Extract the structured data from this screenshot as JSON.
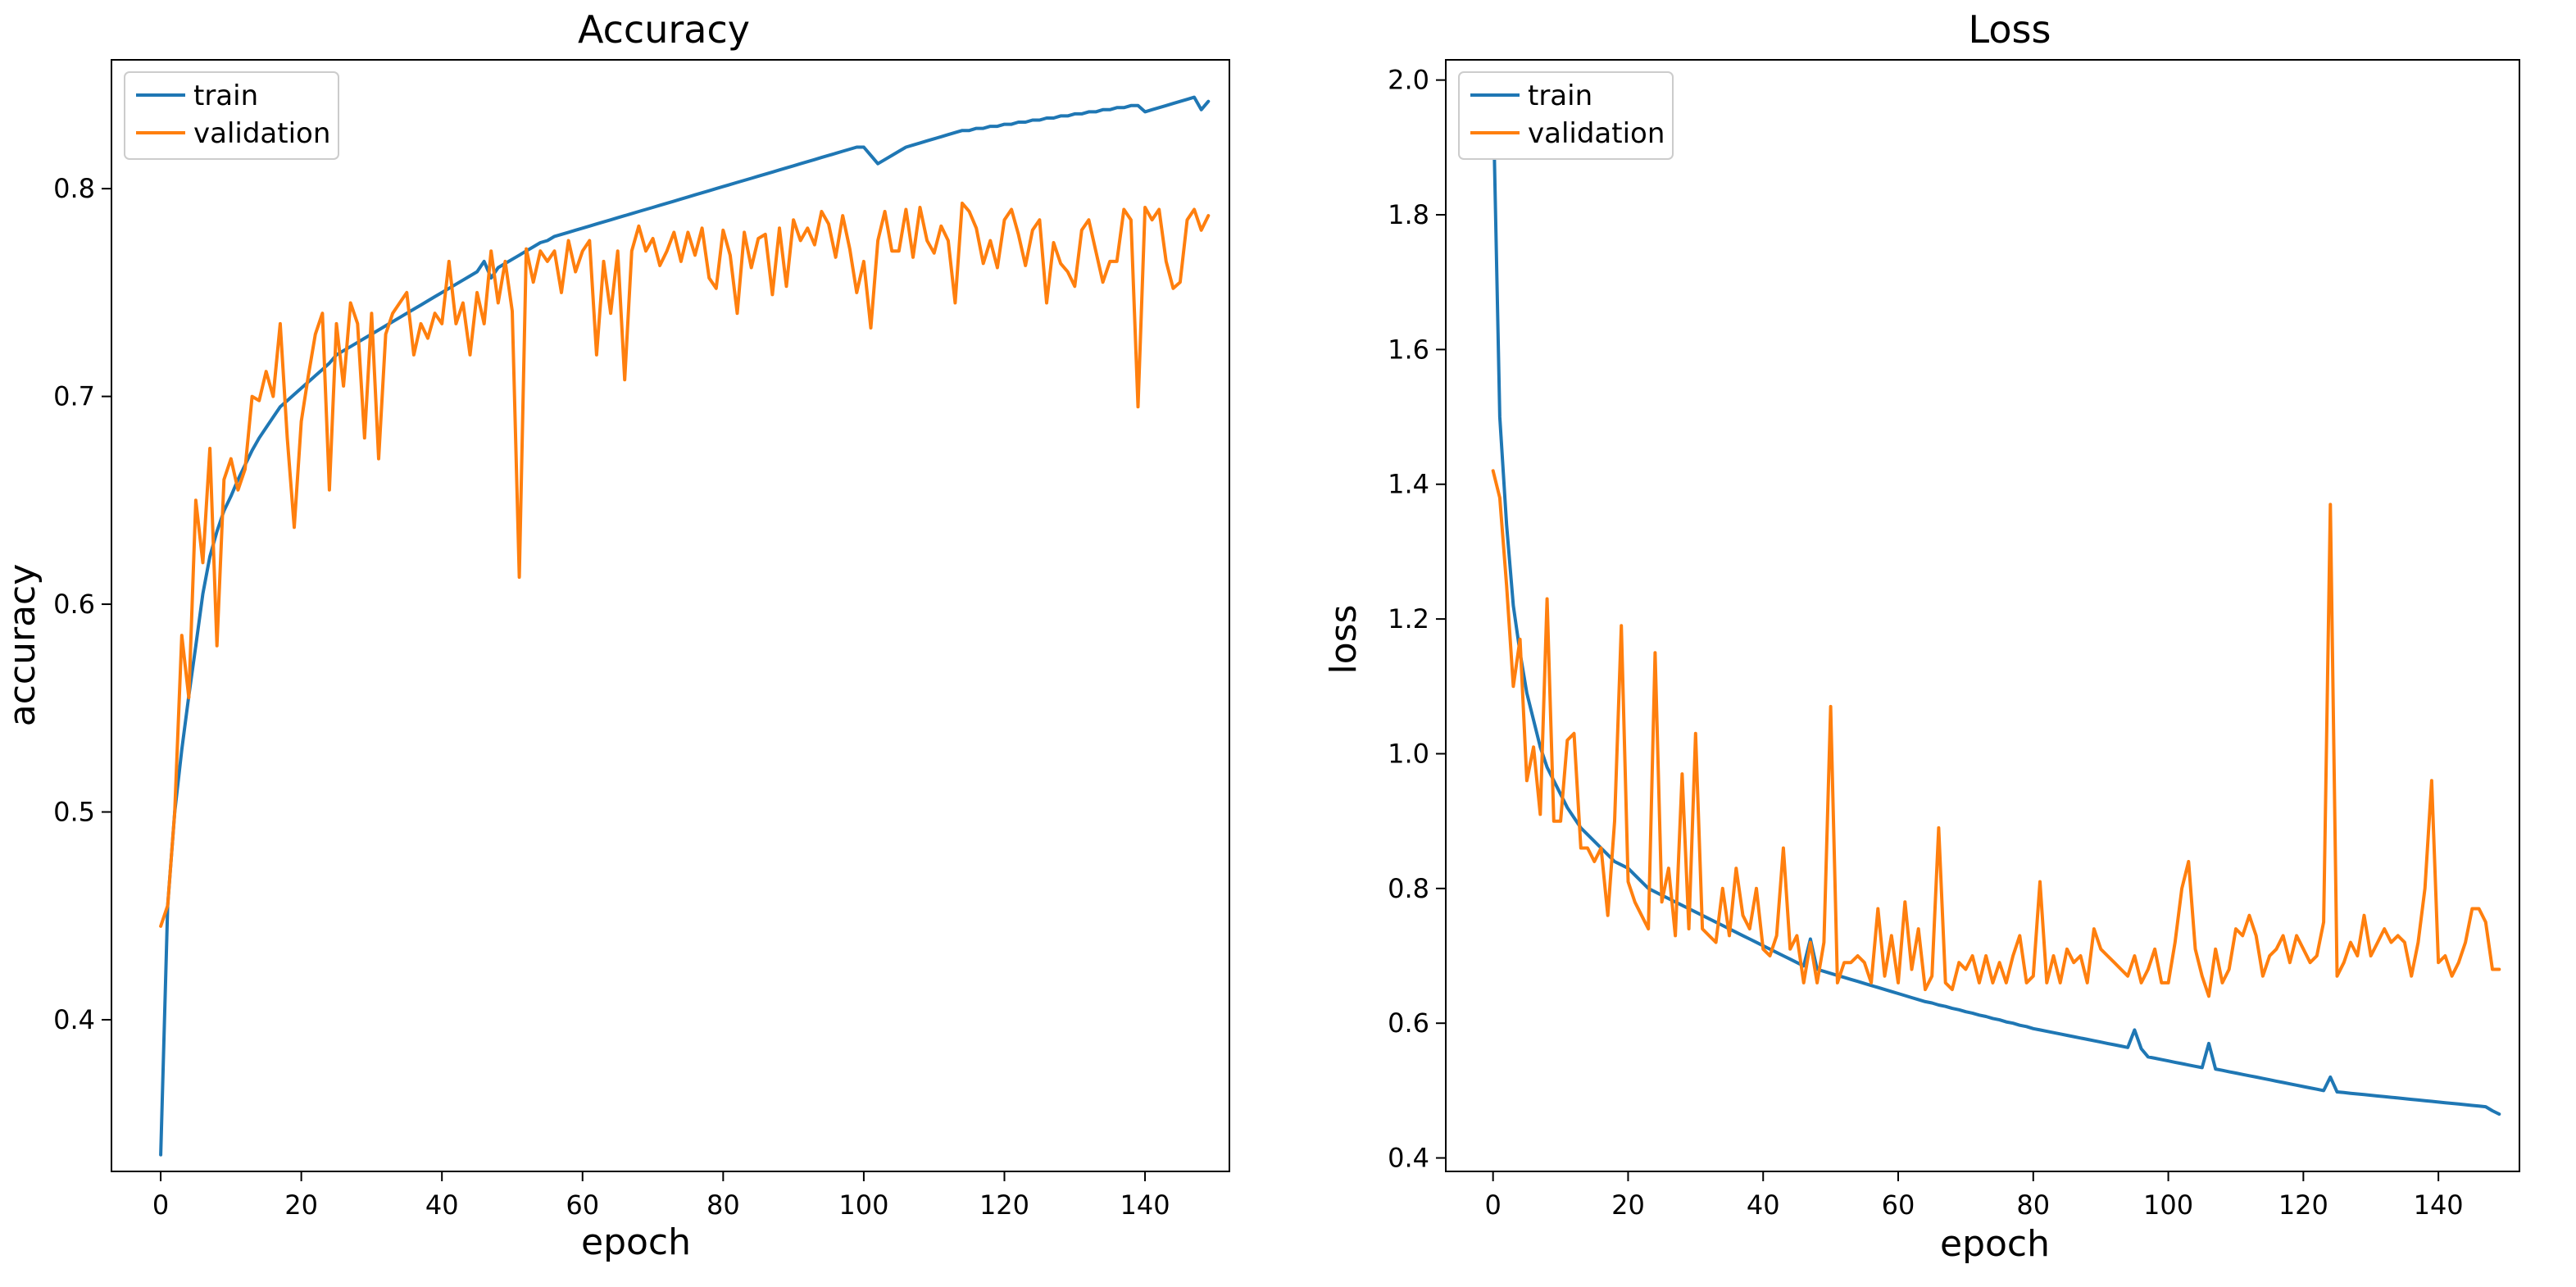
{
  "colors": {
    "train": "#1f77b4",
    "validation": "#ff7f0e",
    "axis": "#000000",
    "background": "#ffffff"
  },
  "chart_data": [
    {
      "type": "line",
      "title": "Accuracy",
      "xlabel": "epoch",
      "ylabel": "accuracy",
      "xlim": [
        -7,
        152
      ],
      "ylim": [
        0.327,
        0.862
      ],
      "xticks": [
        0,
        20,
        40,
        60,
        80,
        100,
        120,
        140
      ],
      "xtick_labels": [
        "0",
        "20",
        "40",
        "60",
        "80",
        "100",
        "120",
        "140"
      ],
      "yticks": [
        0.4,
        0.5,
        0.6,
        0.7,
        0.8
      ],
      "ytick_labels": [
        "0.4",
        "0.5",
        "0.6",
        "0.7",
        "0.8"
      ],
      "legend_position": "top-left",
      "grid": false,
      "x": [
        0,
        1,
        2,
        3,
        4,
        5,
        6,
        7,
        8,
        9,
        10,
        11,
        12,
        13,
        14,
        15,
        16,
        17,
        18,
        19,
        20,
        21,
        22,
        23,
        24,
        25,
        26,
        27,
        28,
        29,
        30,
        31,
        32,
        33,
        34,
        35,
        36,
        37,
        38,
        39,
        40,
        41,
        42,
        43,
        44,
        45,
        46,
        47,
        48,
        49,
        50,
        51,
        52,
        53,
        54,
        55,
        56,
        57,
        58,
        59,
        60,
        61,
        62,
        63,
        64,
        65,
        66,
        67,
        68,
        69,
        70,
        71,
        72,
        73,
        74,
        75,
        76,
        77,
        78,
        79,
        80,
        81,
        82,
        83,
        84,
        85,
        86,
        87,
        88,
        89,
        90,
        91,
        92,
        93,
        94,
        95,
        96,
        97,
        98,
        99,
        100,
        101,
        102,
        103,
        104,
        105,
        106,
        107,
        108,
        109,
        110,
        111,
        112,
        113,
        114,
        115,
        116,
        117,
        118,
        119,
        120,
        121,
        122,
        123,
        124,
        125,
        126,
        127,
        128,
        129,
        130,
        131,
        132,
        133,
        134,
        135,
        136,
        137,
        138,
        139,
        140,
        141,
        142,
        143,
        144,
        145,
        146,
        147,
        148,
        149
      ],
      "series": [
        {
          "name": "train",
          "color": "#1f77b4",
          "values": [
            0.335,
            0.455,
            0.5,
            0.53,
            0.556,
            0.58,
            0.605,
            0.623,
            0.635,
            0.645,
            0.652,
            0.66,
            0.667,
            0.674,
            0.68,
            0.685,
            0.69,
            0.695,
            0.698,
            0.701,
            0.704,
            0.707,
            0.71,
            0.713,
            0.716,
            0.72,
            0.722,
            0.724,
            0.726,
            0.728,
            0.73,
            0.732,
            0.734,
            0.736,
            0.738,
            0.74,
            0.742,
            0.744,
            0.746,
            0.748,
            0.75,
            0.752,
            0.754,
            0.756,
            0.758,
            0.76,
            0.765,
            0.757,
            0.762,
            0.764,
            0.766,
            0.768,
            0.77,
            0.772,
            0.774,
            0.775,
            0.777,
            0.778,
            0.779,
            0.78,
            0.781,
            0.782,
            0.783,
            0.784,
            0.785,
            0.786,
            0.787,
            0.788,
            0.789,
            0.79,
            0.791,
            0.792,
            0.793,
            0.794,
            0.795,
            0.796,
            0.797,
            0.798,
            0.799,
            0.8,
            0.801,
            0.802,
            0.803,
            0.804,
            0.805,
            0.806,
            0.807,
            0.808,
            0.809,
            0.81,
            0.811,
            0.812,
            0.813,
            0.814,
            0.815,
            0.816,
            0.817,
            0.818,
            0.819,
            0.82,
            0.82,
            0.816,
            0.812,
            0.814,
            0.816,
            0.818,
            0.82,
            0.821,
            0.822,
            0.823,
            0.824,
            0.825,
            0.826,
            0.827,
            0.828,
            0.828,
            0.829,
            0.829,
            0.83,
            0.83,
            0.831,
            0.831,
            0.832,
            0.832,
            0.833,
            0.833,
            0.834,
            0.834,
            0.835,
            0.835,
            0.836,
            0.836,
            0.837,
            0.837,
            0.838,
            0.838,
            0.839,
            0.839,
            0.84,
            0.84,
            0.837,
            0.838,
            0.839,
            0.84,
            0.841,
            0.842,
            0.843,
            0.844,
            0.838,
            0.842
          ]
        },
        {
          "name": "validation",
          "color": "#ff7f0e",
          "values": [
            0.445,
            0.455,
            0.5,
            0.585,
            0.555,
            0.65,
            0.62,
            0.675,
            0.58,
            0.66,
            0.67,
            0.655,
            0.665,
            0.7,
            0.698,
            0.712,
            0.7,
            0.735,
            0.68,
            0.637,
            0.688,
            0.71,
            0.73,
            0.74,
            0.655,
            0.735,
            0.705,
            0.745,
            0.735,
            0.68,
            0.74,
            0.67,
            0.73,
            0.74,
            0.745,
            0.75,
            0.72,
            0.735,
            0.728,
            0.74,
            0.735,
            0.765,
            0.735,
            0.745,
            0.72,
            0.75,
            0.735,
            0.77,
            0.745,
            0.765,
            0.741,
            0.613,
            0.771,
            0.755,
            0.77,
            0.765,
            0.77,
            0.75,
            0.775,
            0.76,
            0.77,
            0.775,
            0.72,
            0.765,
            0.74,
            0.77,
            0.708,
            0.77,
            0.782,
            0.77,
            0.776,
            0.763,
            0.77,
            0.779,
            0.765,
            0.779,
            0.768,
            0.781,
            0.757,
            0.752,
            0.78,
            0.768,
            0.74,
            0.779,
            0.762,
            0.776,
            0.778,
            0.749,
            0.781,
            0.753,
            0.785,
            0.775,
            0.781,
            0.773,
            0.789,
            0.783,
            0.767,
            0.787,
            0.771,
            0.75,
            0.765,
            0.733,
            0.775,
            0.789,
            0.77,
            0.77,
            0.79,
            0.767,
            0.791,
            0.775,
            0.769,
            0.782,
            0.775,
            0.745,
            0.793,
            0.789,
            0.781,
            0.764,
            0.775,
            0.762,
            0.785,
            0.79,
            0.778,
            0.763,
            0.78,
            0.785,
            0.745,
            0.774,
            0.764,
            0.76,
            0.753,
            0.78,
            0.785,
            0.77,
            0.755,
            0.765,
            0.765,
            0.79,
            0.785,
            0.695,
            0.791,
            0.785,
            0.79,
            0.765,
            0.752,
            0.755,
            0.785,
            0.79,
            0.78,
            0.787
          ]
        }
      ]
    },
    {
      "type": "line",
      "title": "Loss",
      "xlabel": "epoch",
      "ylabel": "loss",
      "xlim": [
        -7,
        152
      ],
      "ylim": [
        0.38,
        2.03
      ],
      "xticks": [
        0,
        20,
        40,
        60,
        80,
        100,
        120,
        140
      ],
      "xtick_labels": [
        "0",
        "20",
        "40",
        "60",
        "80",
        "100",
        "120",
        "140"
      ],
      "yticks": [
        0.4,
        0.6,
        0.8,
        1.0,
        1.2,
        1.4,
        1.6,
        1.8,
        2.0
      ],
      "ytick_labels": [
        "0.4",
        "0.6",
        "0.8",
        "1.0",
        "1.2",
        "1.4",
        "1.6",
        "1.8",
        "2.0"
      ],
      "legend_position": "top-left",
      "grid": false,
      "x": [
        0,
        1,
        2,
        3,
        4,
        5,
        6,
        7,
        8,
        9,
        10,
        11,
        12,
        13,
        14,
        15,
        16,
        17,
        18,
        19,
        20,
        21,
        22,
        23,
        24,
        25,
        26,
        27,
        28,
        29,
        30,
        31,
        32,
        33,
        34,
        35,
        36,
        37,
        38,
        39,
        40,
        41,
        42,
        43,
        44,
        45,
        46,
        47,
        48,
        49,
        50,
        51,
        52,
        53,
        54,
        55,
        56,
        57,
        58,
        59,
        60,
        61,
        62,
        63,
        64,
        65,
        66,
        67,
        68,
        69,
        70,
        71,
        72,
        73,
        74,
        75,
        76,
        77,
        78,
        79,
        80,
        81,
        82,
        83,
        84,
        85,
        86,
        87,
        88,
        89,
        90,
        91,
        92,
        93,
        94,
        95,
        96,
        97,
        98,
        99,
        100,
        101,
        102,
        103,
        104,
        105,
        106,
        107,
        108,
        109,
        110,
        111,
        112,
        113,
        114,
        115,
        116,
        117,
        118,
        119,
        120,
        121,
        122,
        123,
        124,
        125,
        126,
        127,
        128,
        129,
        130,
        131,
        132,
        133,
        134,
        135,
        136,
        137,
        138,
        139,
        140,
        141,
        142,
        143,
        144,
        145,
        146,
        147,
        148,
        149
      ],
      "series": [
        {
          "name": "train",
          "color": "#1f77b4",
          "values": [
            1.98,
            1.5,
            1.34,
            1.22,
            1.15,
            1.09,
            1.05,
            1.01,
            0.98,
            0.96,
            0.94,
            0.92,
            0.905,
            0.89,
            0.88,
            0.87,
            0.86,
            0.85,
            0.84,
            0.835,
            0.83,
            0.82,
            0.81,
            0.8,
            0.795,
            0.79,
            0.785,
            0.78,
            0.775,
            0.77,
            0.765,
            0.76,
            0.755,
            0.75,
            0.745,
            0.74,
            0.735,
            0.73,
            0.725,
            0.72,
            0.715,
            0.71,
            0.705,
            0.7,
            0.695,
            0.69,
            0.685,
            0.725,
            0.68,
            0.677,
            0.674,
            0.671,
            0.668,
            0.665,
            0.662,
            0.659,
            0.656,
            0.653,
            0.65,
            0.647,
            0.644,
            0.641,
            0.638,
            0.635,
            0.632,
            0.63,
            0.627,
            0.625,
            0.622,
            0.62,
            0.617,
            0.615,
            0.612,
            0.61,
            0.607,
            0.605,
            0.602,
            0.6,
            0.597,
            0.595,
            0.592,
            0.59,
            0.588,
            0.586,
            0.584,
            0.582,
            0.58,
            0.578,
            0.576,
            0.574,
            0.572,
            0.57,
            0.568,
            0.566,
            0.564,
            0.59,
            0.562,
            0.55,
            0.548,
            0.546,
            0.544,
            0.542,
            0.54,
            0.538,
            0.536,
            0.534,
            0.57,
            0.532,
            0.53,
            0.528,
            0.526,
            0.524,
            0.522,
            0.52,
            0.518,
            0.516,
            0.514,
            0.512,
            0.51,
            0.508,
            0.506,
            0.504,
            0.502,
            0.5,
            0.52,
            0.498,
            0.497,
            0.496,
            0.495,
            0.494,
            0.493,
            0.492,
            0.491,
            0.49,
            0.489,
            0.488,
            0.487,
            0.486,
            0.485,
            0.484,
            0.483,
            0.482,
            0.481,
            0.48,
            0.479,
            0.478,
            0.477,
            0.476,
            0.47,
            0.465
          ]
        },
        {
          "name": "validation",
          "color": "#ff7f0e",
          "values": [
            1.42,
            1.38,
            1.25,
            1.1,
            1.17,
            0.96,
            1.01,
            0.91,
            1.23,
            0.9,
            0.9,
            1.02,
            1.03,
            0.86,
            0.86,
            0.84,
            0.86,
            0.76,
            0.9,
            1.19,
            0.81,
            0.78,
            0.76,
            0.74,
            1.15,
            0.78,
            0.83,
            0.73,
            0.97,
            0.74,
            1.03,
            0.74,
            0.73,
            0.72,
            0.8,
            0.73,
            0.83,
            0.76,
            0.74,
            0.8,
            0.71,
            0.7,
            0.73,
            0.86,
            0.71,
            0.73,
            0.66,
            0.72,
            0.66,
            0.72,
            1.07,
            0.66,
            0.69,
            0.69,
            0.7,
            0.69,
            0.66,
            0.77,
            0.67,
            0.73,
            0.66,
            0.78,
            0.68,
            0.74,
            0.65,
            0.67,
            0.89,
            0.66,
            0.65,
            0.69,
            0.68,
            0.7,
            0.66,
            0.7,
            0.66,
            0.69,
            0.66,
            0.7,
            0.73,
            0.66,
            0.67,
            0.81,
            0.66,
            0.7,
            0.66,
            0.71,
            0.69,
            0.7,
            0.66,
            0.74,
            0.71,
            0.7,
            0.69,
            0.68,
            0.67,
            0.7,
            0.66,
            0.68,
            0.71,
            0.66,
            0.66,
            0.72,
            0.8,
            0.84,
            0.71,
            0.67,
            0.64,
            0.71,
            0.66,
            0.68,
            0.74,
            0.73,
            0.76,
            0.73,
            0.67,
            0.7,
            0.71,
            0.73,
            0.69,
            0.73,
            0.71,
            0.69,
            0.7,
            0.75,
            1.37,
            0.67,
            0.69,
            0.72,
            0.7,
            0.76,
            0.7,
            0.72,
            0.74,
            0.72,
            0.73,
            0.72,
            0.67,
            0.72,
            0.8,
            0.96,
            0.69,
            0.7,
            0.67,
            0.69,
            0.72,
            0.77,
            0.77,
            0.75,
            0.68,
            0.68
          ]
        }
      ]
    }
  ]
}
